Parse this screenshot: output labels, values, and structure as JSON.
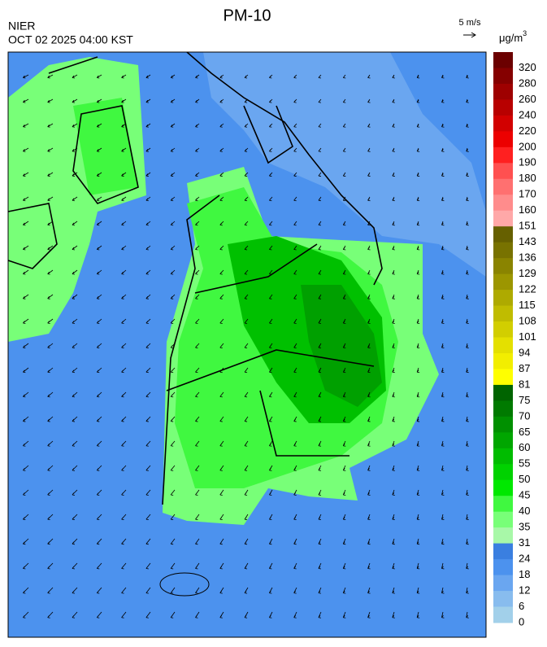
{
  "header": {
    "title": "PM-10",
    "source": "NIER",
    "timestamp": "OCT 02 2025 04:00 KST",
    "wind_scale": "5 m/s"
  },
  "legend": {
    "unit": "μg/m",
    "unit_superscript": "3",
    "levels": [
      {
        "label": "320",
        "color": "#6b0000"
      },
      {
        "label": "280",
        "color": "#850000"
      },
      {
        "label": "260",
        "color": "#9e0000"
      },
      {
        "label": "240",
        "color": "#b80000"
      },
      {
        "label": "220",
        "color": "#d20000"
      },
      {
        "label": "200",
        "color": "#ec0000"
      },
      {
        "label": "190",
        "color": "#ff2020"
      },
      {
        "label": "180",
        "color": "#ff5050"
      },
      {
        "label": "170",
        "color": "#ff7070"
      },
      {
        "label": "160",
        "color": "#ff8c8c"
      },
      {
        "label": "151",
        "color": "#ffa8a8"
      },
      {
        "label": "143",
        "color": "#666000"
      },
      {
        "label": "136",
        "color": "#787200"
      },
      {
        "label": "129",
        "color": "#8a8400"
      },
      {
        "label": "122",
        "color": "#9c9600"
      },
      {
        "label": "115",
        "color": "#aeaa00"
      },
      {
        "label": "108",
        "color": "#c0bc00"
      },
      {
        "label": "101",
        "color": "#d2ce00"
      },
      {
        "label": "94",
        "color": "#e4e000"
      },
      {
        "label": "87",
        "color": "#f2ee00"
      },
      {
        "label": "81",
        "color": "#ffff00"
      },
      {
        "label": "75",
        "color": "#006400"
      },
      {
        "label": "70",
        "color": "#007a00"
      },
      {
        "label": "65",
        "color": "#009000"
      },
      {
        "label": "60",
        "color": "#00a600"
      },
      {
        "label": "55",
        "color": "#00bc00"
      },
      {
        "label": "50",
        "color": "#00d200"
      },
      {
        "label": "45",
        "color": "#00e800"
      },
      {
        "label": "40",
        "color": "#40f840"
      },
      {
        "label": "35",
        "color": "#78ff78"
      },
      {
        "label": "31",
        "color": "#a8f8a8"
      },
      {
        "label": "24",
        "color": "#3a7fe0"
      },
      {
        "label": "18",
        "color": "#4c92ee"
      },
      {
        "label": "12",
        "color": "#6aa6f0"
      },
      {
        "label": "6",
        "color": "#88bcee"
      },
      {
        "label": "0",
        "color": "#a2d0ea"
      }
    ]
  }
}
